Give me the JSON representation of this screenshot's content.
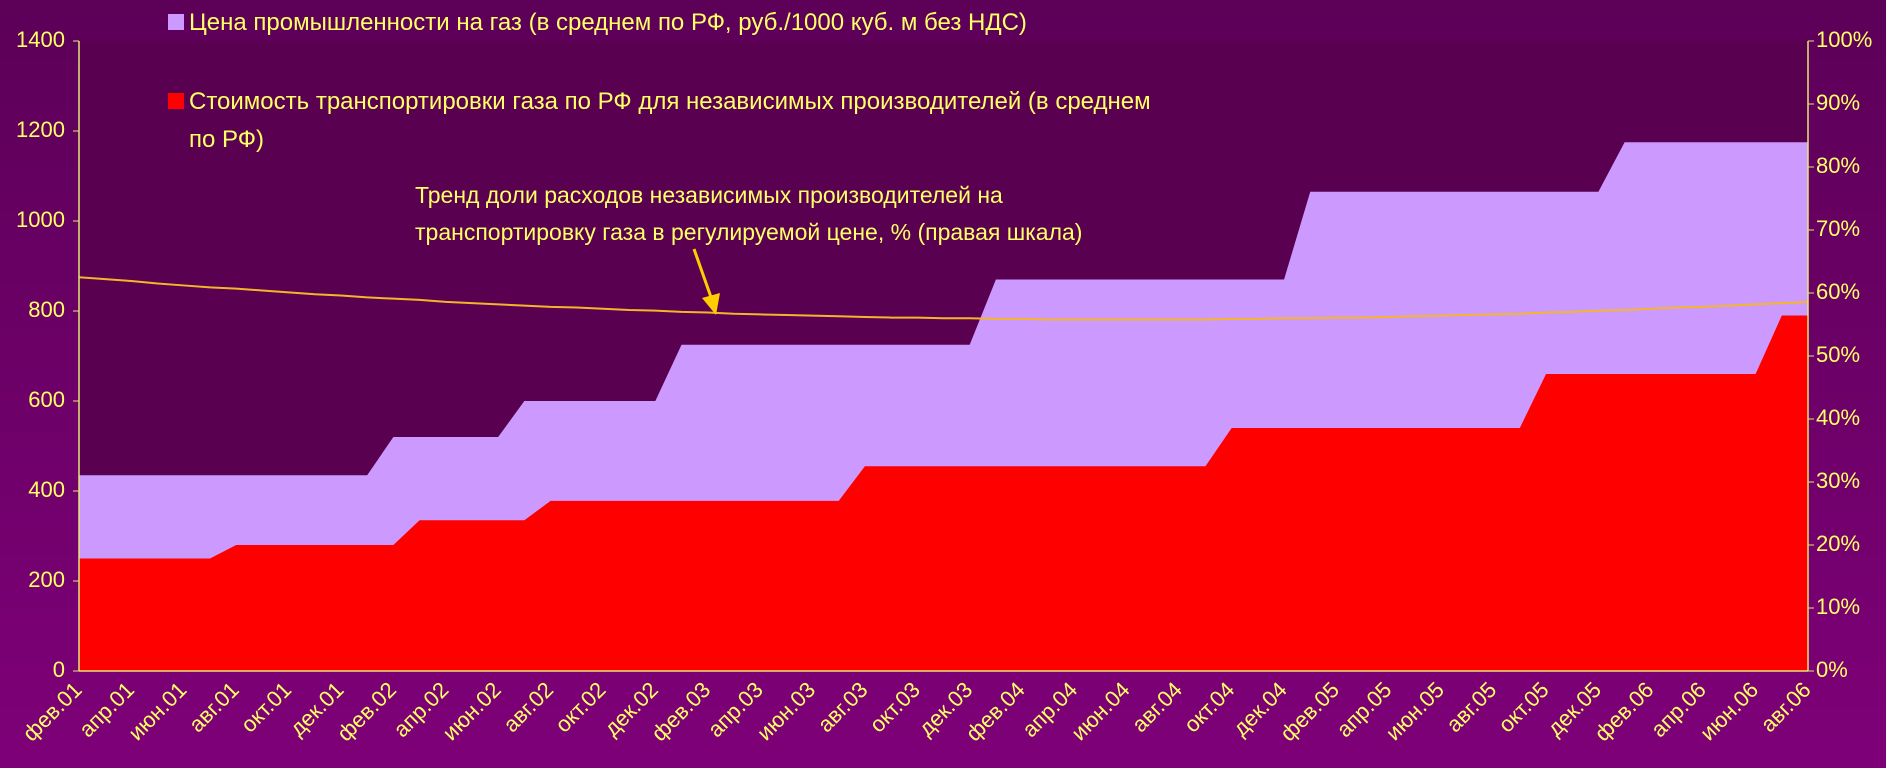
{
  "chart_data": {
    "type": "area",
    "categories": [
      "фев.01",
      null,
      "апр.01",
      null,
      "июн.01",
      null,
      "авг.01",
      null,
      "окт.01",
      null,
      "дек.01",
      null,
      "фев.02",
      null,
      "апр.02",
      null,
      "июн.02",
      null,
      "авг.02",
      null,
      "окт.02",
      null,
      "дек.02",
      null,
      "фев.03",
      null,
      "апр.03",
      null,
      "июн.03",
      null,
      "авг.03",
      null,
      "окт.03",
      null,
      "дек.03",
      null,
      "фев.04",
      null,
      "апр.04",
      null,
      "июн.04",
      null,
      "авг.04",
      null,
      "окт.04",
      null,
      "дек.04",
      null,
      "фев.05",
      null,
      "апр.05",
      null,
      "июн.05",
      null,
      "авг.05",
      null,
      "окт.05",
      null,
      "дек.05",
      null,
      "фев.06",
      null,
      "апр.06",
      null,
      "июн.06",
      null,
      "авг.06"
    ],
    "series": [
      {
        "name": "Цена промышленности на газ (в среднем по РФ, руб./1000 куб. м без НДС)",
        "color": "#cc99ff",
        "values": [
          435,
          435,
          435,
          435,
          435,
          435,
          435,
          435,
          435,
          435,
          435,
          435,
          520,
          520,
          520,
          520,
          520,
          600,
          600,
          600,
          600,
          600,
          600,
          725,
          725,
          725,
          725,
          725,
          725,
          725,
          725,
          725,
          725,
          725,
          725,
          870,
          870,
          870,
          870,
          870,
          870,
          870,
          870,
          870,
          870,
          870,
          870,
          1065,
          1065,
          1065,
          1065,
          1065,
          1065,
          1065,
          1065,
          1065,
          1065,
          1065,
          1065,
          1175,
          1175,
          1175,
          1175,
          1175,
          1175,
          1175,
          1175
        ]
      },
      {
        "name": "Стоимость транспортировки газа по РФ для независимых производителей (в среднем по РФ)",
        "color": "#ff0000",
        "values": [
          250,
          250,
          250,
          250,
          250,
          250,
          280,
          280,
          280,
          280,
          280,
          280,
          280,
          335,
          335,
          335,
          335,
          335,
          378,
          378,
          378,
          378,
          378,
          378,
          378,
          378,
          378,
          378,
          378,
          378,
          455,
          455,
          455,
          455,
          455,
          455,
          455,
          455,
          455,
          455,
          455,
          455,
          455,
          455,
          540,
          540,
          540,
          540,
          540,
          540,
          540,
          540,
          540,
          540,
          540,
          540,
          660,
          660,
          660,
          660,
          660,
          660,
          660,
          660,
          660,
          790,
          790
        ]
      },
      {
        "type": "line",
        "axis": "y2",
        "color": "#f5b52a",
        "values": [
          62.5,
          62.2,
          61.9,
          61.5,
          61.2,
          60.9,
          60.7,
          60.4,
          60.1,
          59.8,
          59.6,
          59.3,
          59.1,
          58.9,
          58.6,
          58.4,
          58.2,
          58.0,
          57.8,
          57.7,
          57.5,
          57.3,
          57.2,
          57.0,
          56.9,
          56.7,
          56.6,
          56.5,
          56.4,
          56.3,
          56.2,
          56.1,
          56.1,
          56.0,
          56.0,
          55.9,
          55.9,
          55.8,
          55.8,
          55.8,
          55.8,
          55.8,
          55.8,
          55.8,
          55.9,
          55.9,
          56.0,
          56.0,
          56.1,
          56.1,
          56.2,
          56.3,
          56.4,
          56.5,
          56.6,
          56.7,
          56.9,
          57.0,
          57.2,
          57.3,
          57.5,
          57.7,
          57.8,
          58.0,
          58.2,
          58.4,
          58.6
        ]
      }
    ],
    "annotation": [
      "Тренд доли расходов независимых производителей на",
      "транспортировку газа в регулируемой цене, % (правая шкала)"
    ],
    "ylim": [
      0,
      1400
    ],
    "yticks": [
      0,
      200,
      400,
      600,
      800,
      1000,
      1200,
      1400
    ],
    "y2lim": [
      0,
      100
    ],
    "y2ticks": [
      {
        "value": 0,
        "label": "0%"
      },
      {
        "value": 10,
        "label": "10%"
      },
      {
        "value": 20,
        "label": "20%"
      },
      {
        "value": 30,
        "label": "30%"
      },
      {
        "value": 40,
        "label": "40%"
      },
      {
        "value": 50,
        "label": "50%"
      },
      {
        "value": 60,
        "label": "60%"
      },
      {
        "value": 70,
        "label": "70%"
      },
      {
        "value": 80,
        "label": "80%"
      },
      {
        "value": 90,
        "label": "90%"
      },
      {
        "value": 100,
        "label": "100%"
      }
    ],
    "grid": false,
    "legend": "top"
  }
}
